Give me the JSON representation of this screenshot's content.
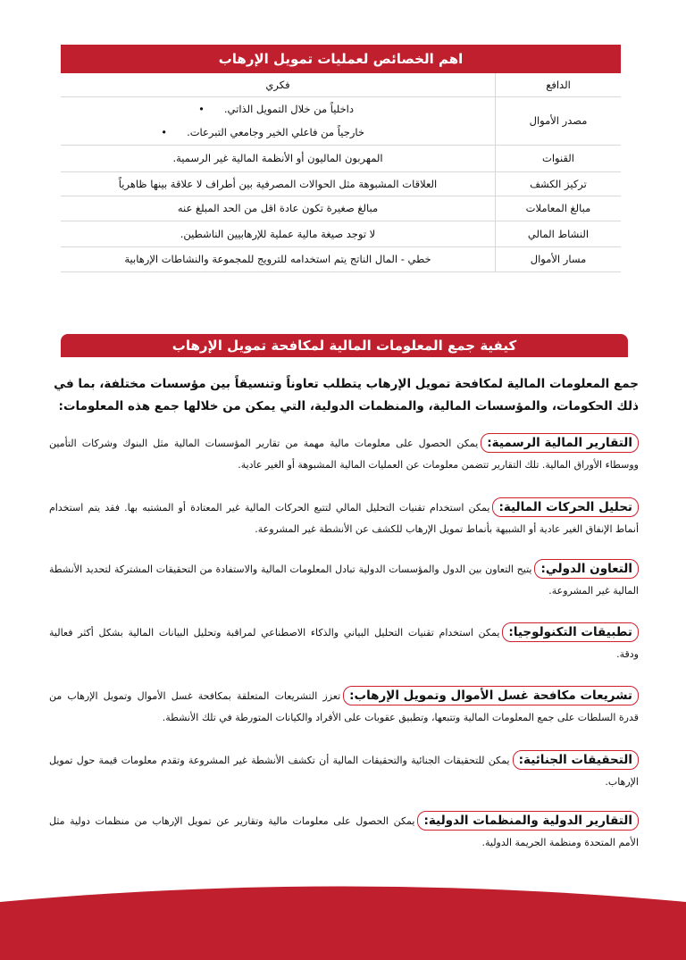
{
  "table": {
    "title": "اهم الخصائص لعمليات تمويل الإرهاب",
    "rows": [
      {
        "key": "الدافع",
        "value": "فكري"
      },
      {
        "key": "مصدر الأموال",
        "bullets": [
          "داخلياً من خلال التمويل الذاتي.",
          "خارجياً من فاعلي الخير وجامعي التبرعات."
        ]
      },
      {
        "key": "القنوات",
        "value": "المهربون الماليون أو الأنظمة المالية غير الرسمية."
      },
      {
        "key": "تركيز الكشف",
        "value": "العلاقات المشبوهة مثل الحوالات المصرفية بين أطراف لا علاقة بينها ظاهرياً"
      },
      {
        "key": "مبالغ المعاملات",
        "value": "مبالغ صغيرة تكون عادة اقل من الحد المبلغ عنه"
      },
      {
        "key": "النشاط المالي",
        "value": "لا توجد صيغة مالية عملية للإرهابيين الناشطين."
      },
      {
        "key": "مسار الأموال",
        "value": "خطي - المال الناتج يتم استخدامه للترويج للمجموعة والنشاطات الإرهابية"
      }
    ]
  },
  "section": {
    "title": "كيفية جمع المعلومات المالية لمكافحة تمويل الإرهاب",
    "intro": "جمع المعلومات المالية لمكافحة تمويل الإرهاب يتطلب تعاوناً وتنسيقاً بين مؤسسات مختلفة، بما في ذلك الحكومات، والمؤسسات المالية، والمنظمات الدولية، التي يمكن من خلالها جمع هذه المعلومات:",
    "items": [
      {
        "label": "التقارير المالية الرسمية:",
        "text": "يمكن الحصول على معلومات مالية مهمة من تقارير المؤسسات المالية مثل البنوك وشركات التأمين ووسطاء الأوراق المالية. تلك التقارير تتضمن معلومات عن العمليات المالية المشبوهة أو الغير عادية."
      },
      {
        "label": "تحليل الحركات المالية:",
        "text": "يمكن استخدام تقنيات التحليل المالي لتتبع الحركات المالية غير المعتادة أو المشتبه بها. فقد يتم استخدام أنماط الإنفاق الغير عادية أو الشبيهة بأنماط تمويل الإرهاب للكشف عن الأنشطة غير المشروعة."
      },
      {
        "label": "التعاون الدولي:",
        "text": "يتيح التعاون بين الدول والمؤسسات الدولية تبادل المعلومات المالية والاستفادة من التحقيقات المشتركة لتحديد الأنشطة المالية غير المشروعة."
      },
      {
        "label": "تطبيقات التكنولوجيا:",
        "text": "يمكن استخدام تقنيات التحليل البياني والذكاء الاصطناعي لمراقبة وتحليل البيانات المالية بشكل أكثر فعالية ودقة."
      },
      {
        "label": "تشريعات مكافحة غسل الأموال وتمويل الإرهاب:",
        "text": "تعزز التشريعات المتعلقة بمكافحة غسل الأموال وتمويل الإرهاب من قدرة السلطات على جمع المعلومات المالية وتتبعها، وتطبيق عقوبات على الأفراد والكيانات المتورطة في تلك الأنشطة."
      },
      {
        "label": "التحقيقات الجنائية:",
        "text": "يمكن للتحقيقات الجنائية والتحقيقات المالية أن تكشف الأنشطة غير المشروعة وتقدم معلومات قيمة حول تمويل الإرهاب."
      },
      {
        "label": "التقارير الدولية والمنظمات الدولية:",
        "text": "يمكن الحصول على معلومات مالية وتقارير عن تمويل الإرهاب من منظمات دولية مثل الأمم المتحدة ومنظمة الجريمة الدولية."
      }
    ]
  },
  "colors": {
    "accent": "#c0202e"
  }
}
